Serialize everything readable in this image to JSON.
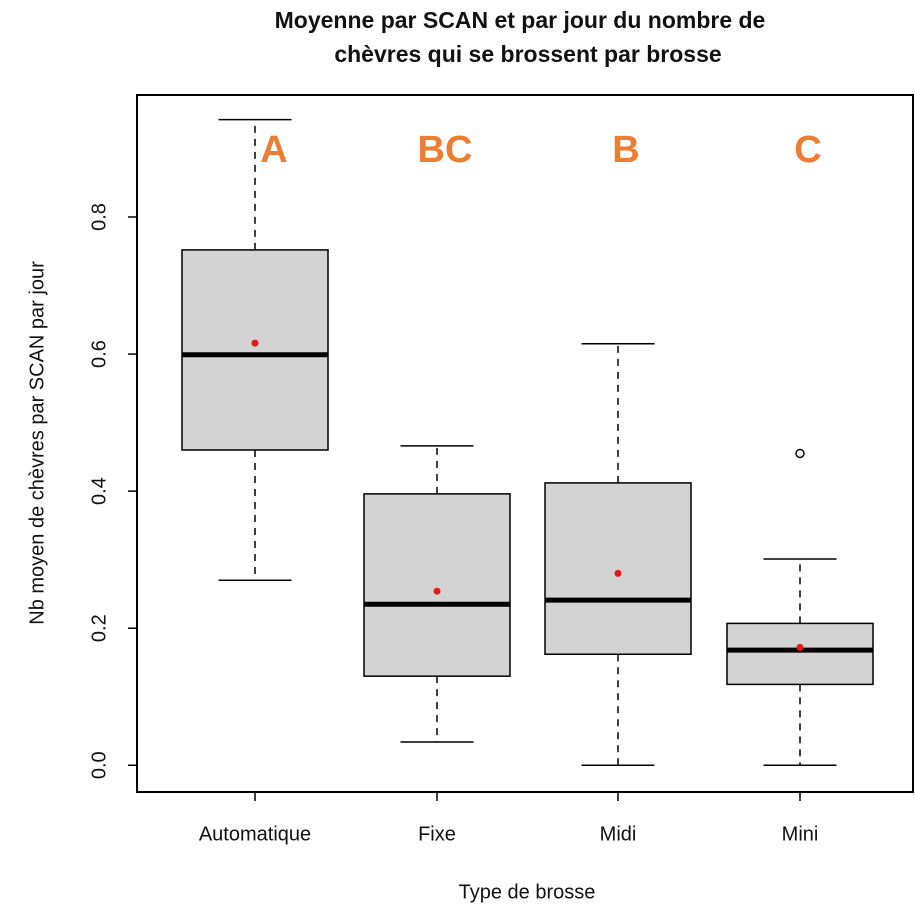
{
  "chart_data": {
    "type": "box",
    "title": [
      "Moyenne par SCAN et par jour du nombre de",
      "chèvres qui se brossent par brosse"
    ],
    "x_label": "Type de brosse",
    "y_label": "Nb moyen de chèvres par SCAN par jour",
    "categories": [
      "Automatique",
      "Fixe",
      "Midi",
      "Mini"
    ],
    "boxes": [
      {
        "whisker_low": 0.27,
        "q1": 0.46,
        "median": 0.599,
        "q3": 0.752,
        "whisker_high": 0.942,
        "mean": 0.616,
        "outliers": []
      },
      {
        "whisker_low": 0.034,
        "q1": 0.13,
        "median": 0.235,
        "q3": 0.396,
        "whisker_high": 0.466,
        "mean": 0.254,
        "outliers": []
      },
      {
        "whisker_low": 0,
        "q1": 0.162,
        "median": 0.241,
        "q3": 0.412,
        "whisker_high": 0.615,
        "mean": 0.28,
        "outliers": []
      },
      {
        "whisker_low": 0,
        "q1": 0.118,
        "median": 0.168,
        "q3": 0.207,
        "whisker_high": 0.301,
        "mean": 0.172,
        "outliers": [
          0.455
        ]
      }
    ],
    "group_letters": [
      "A",
      "BC",
      "B",
      "C"
    ],
    "box_color": "#d3d3d3",
    "mean_color": "#e31a1c",
    "ylim": [
      -0.039,
      0.978
    ],
    "yticks": [
      {
        "value": 0,
        "label": "0.0"
      },
      0.2,
      0.4,
      0.6,
      0.8
    ]
  }
}
